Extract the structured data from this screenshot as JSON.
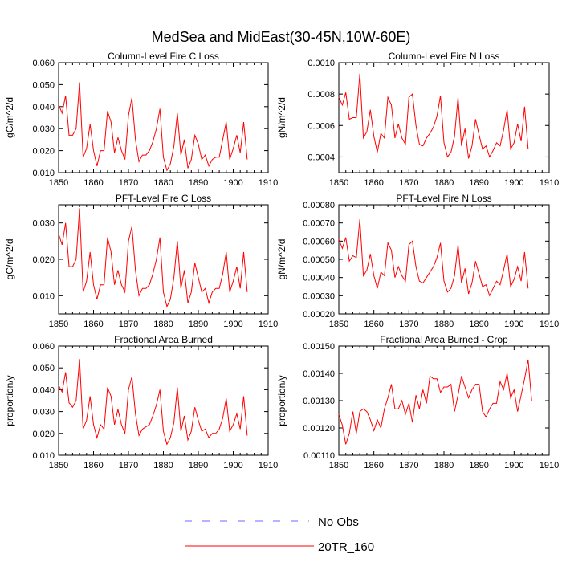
{
  "figure": {
    "title": "MedSea and MidEast(30-45N,10W-60E)",
    "line_color": "#ff0000",
    "obs_color": "#0000ff"
  },
  "legend": {
    "items": [
      {
        "label": "No Obs",
        "style": "dashed",
        "color": "#6a6aff"
      },
      {
        "label": "20TR_160",
        "style": "solid",
        "color": "#ff0000"
      }
    ]
  },
  "chart_data": [
    {
      "type": "line",
      "title": "Column-Level Fire C Loss",
      "ylabel": "gC/m^2/d",
      "xlim": [
        1850,
        1910
      ],
      "ylim": [
        0.01,
        0.06
      ],
      "xticks": [
        1850,
        1860,
        1870,
        1880,
        1890,
        1900,
        1910
      ],
      "yticks": [
        0.01,
        0.02,
        0.03,
        0.04,
        0.05,
        0.06
      ],
      "ytick_labels": [
        "0.010",
        "0.020",
        "0.030",
        "0.040",
        "0.050",
        "0.060"
      ],
      "x_start": 1850,
      "series": [
        {
          "name": "20TR_160",
          "values": [
            0.041,
            0.037,
            0.045,
            0.027,
            0.027,
            0.03,
            0.051,
            0.017,
            0.021,
            0.032,
            0.02,
            0.013,
            0.02,
            0.02,
            0.038,
            0.033,
            0.019,
            0.026,
            0.02,
            0.016,
            0.036,
            0.044,
            0.025,
            0.015,
            0.018,
            0.018,
            0.02,
            0.024,
            0.03,
            0.039,
            0.017,
            0.011,
            0.014,
            0.022,
            0.037,
            0.018,
            0.025,
            0.012,
            0.016,
            0.027,
            0.023,
            0.016,
            0.018,
            0.013,
            0.016,
            0.017,
            0.017,
            0.025,
            0.033,
            0.016,
            0.021,
            0.027,
            0.019,
            0.033,
            0.016
          ]
        }
      ]
    },
    {
      "type": "line",
      "title": "Column-Level Fire N Loss",
      "ylabel": "gN/m^2/d",
      "xlim": [
        1850,
        1910
      ],
      "ylim": [
        0.0003,
        0.001
      ],
      "xticks": [
        1850,
        1860,
        1870,
        1880,
        1890,
        1900,
        1910
      ],
      "yticks": [
        0.0004,
        0.0006,
        0.0008,
        0.001
      ],
      "ytick_labels": [
        "0.0004",
        "0.0006",
        "0.0008",
        "0.0010"
      ],
      "x_start": 1850,
      "series": [
        {
          "name": "20TR_160",
          "values": [
            0.00078,
            0.00073,
            0.00081,
            0.00064,
            0.00065,
            0.00065,
            0.00093,
            0.00052,
            0.00056,
            0.0007,
            0.00053,
            0.00043,
            0.00055,
            0.00052,
            0.00078,
            0.00073,
            0.00052,
            0.00061,
            0.00052,
            0.00048,
            0.00078,
            0.0008,
            0.0006,
            0.00048,
            0.00047,
            0.00052,
            0.00055,
            0.00059,
            0.00066,
            0.00079,
            0.00049,
            0.0004,
            0.00043,
            0.00053,
            0.00078,
            0.00047,
            0.00058,
            0.00039,
            0.00047,
            0.00064,
            0.00054,
            0.00045,
            0.00047,
            0.0004,
            0.00044,
            0.00049,
            0.00047,
            0.00057,
            0.0007,
            0.00045,
            0.00049,
            0.00061,
            0.0005,
            0.00072,
            0.00045
          ]
        }
      ]
    },
    {
      "type": "line",
      "title": "PFT-Level Fire C Loss",
      "ylabel": "gC/m^2/d",
      "xlim": [
        1850,
        1910
      ],
      "ylim": [
        0.005,
        0.035
      ],
      "xticks": [
        1850,
        1860,
        1870,
        1880,
        1890,
        1900,
        1910
      ],
      "yticks": [
        0.01,
        0.02,
        0.03
      ],
      "ytick_labels": [
        "0.010",
        "0.020",
        "0.030"
      ],
      "x_start": 1850,
      "series": [
        {
          "name": "20TR_160",
          "values": [
            0.027,
            0.024,
            0.03,
            0.018,
            0.018,
            0.02,
            0.034,
            0.011,
            0.014,
            0.022,
            0.013,
            0.009,
            0.013,
            0.013,
            0.026,
            0.022,
            0.013,
            0.017,
            0.013,
            0.011,
            0.025,
            0.029,
            0.017,
            0.01,
            0.012,
            0.012,
            0.013,
            0.016,
            0.02,
            0.026,
            0.011,
            0.007,
            0.009,
            0.015,
            0.025,
            0.012,
            0.017,
            0.008,
            0.011,
            0.019,
            0.015,
            0.011,
            0.012,
            0.008,
            0.011,
            0.012,
            0.012,
            0.016,
            0.022,
            0.011,
            0.014,
            0.018,
            0.012,
            0.022,
            0.011
          ]
        }
      ]
    },
    {
      "type": "line",
      "title": "PFT-Level Fire N Loss",
      "ylabel": "gN/m^2/d",
      "xlim": [
        1850,
        1910
      ],
      "ylim": [
        0.0002,
        0.0008
      ],
      "xticks": [
        1850,
        1860,
        1870,
        1880,
        1890,
        1900,
        1910
      ],
      "yticks": [
        0.0002,
        0.0003,
        0.0004,
        0.0005,
        0.0006,
        0.0007,
        0.0008
      ],
      "ytick_labels": [
        "0.00020",
        "0.00030",
        "0.00040",
        "0.00050",
        "0.00060",
        "0.00070",
        "0.00080"
      ],
      "x_start": 1850,
      "series": [
        {
          "name": "20TR_160",
          "values": [
            0.00061,
            0.00056,
            0.00062,
            0.00049,
            0.00052,
            0.00051,
            0.00072,
            0.00041,
            0.00044,
            0.00053,
            0.00041,
            0.00034,
            0.00043,
            0.00041,
            0.00059,
            0.00055,
            0.0004,
            0.00046,
            0.00041,
            0.00038,
            0.00058,
            0.0006,
            0.00046,
            0.00038,
            0.00037,
            0.0004,
            0.00043,
            0.00046,
            0.00051,
            0.00059,
            0.00038,
            0.00032,
            0.00034,
            0.00041,
            0.00058,
            0.00037,
            0.00045,
            0.00031,
            0.00037,
            0.00049,
            0.00042,
            0.00035,
            0.00036,
            0.0003,
            0.00034,
            0.00038,
            0.00036,
            0.00044,
            0.00053,
            0.00035,
            0.00039,
            0.00046,
            0.00038,
            0.00054,
            0.00034
          ]
        }
      ]
    },
    {
      "type": "line",
      "title": "Fractional Area Burned",
      "ylabel": "proportion/y",
      "xlim": [
        1850,
        1910
      ],
      "ylim": [
        0.01,
        0.06
      ],
      "xticks": [
        1850,
        1860,
        1870,
        1880,
        1890,
        1900,
        1910
      ],
      "yticks": [
        0.01,
        0.02,
        0.03,
        0.04,
        0.05,
        0.06
      ],
      "ytick_labels": [
        "0.010",
        "0.020",
        "0.030",
        "0.040",
        "0.050",
        "0.060"
      ],
      "x_start": 1850,
      "series": [
        {
          "name": "20TR_160",
          "values": [
            0.042,
            0.039,
            0.048,
            0.034,
            0.032,
            0.035,
            0.054,
            0.022,
            0.026,
            0.037,
            0.024,
            0.018,
            0.024,
            0.022,
            0.041,
            0.037,
            0.024,
            0.031,
            0.024,
            0.02,
            0.04,
            0.046,
            0.029,
            0.019,
            0.022,
            0.023,
            0.024,
            0.028,
            0.033,
            0.04,
            0.021,
            0.015,
            0.018,
            0.025,
            0.041,
            0.021,
            0.028,
            0.017,
            0.021,
            0.032,
            0.026,
            0.021,
            0.022,
            0.018,
            0.02,
            0.02,
            0.022,
            0.027,
            0.036,
            0.021,
            0.024,
            0.029,
            0.022,
            0.037,
            0.019
          ]
        }
      ]
    },
    {
      "type": "line",
      "title": "Fractional Area Burned - Crop",
      "ylabel": "proportion/y",
      "xlim": [
        1850,
        1910
      ],
      "ylim": [
        0.0011,
        0.0015
      ],
      "xticks": [
        1850,
        1860,
        1870,
        1880,
        1890,
        1900,
        1910
      ],
      "yticks": [
        0.0011,
        0.0012,
        0.0013,
        0.0014,
        0.0015
      ],
      "ytick_labels": [
        "0.00110",
        "0.00120",
        "0.00130",
        "0.00140",
        "0.00150"
      ],
      "x_start": 1850,
      "series": [
        {
          "name": "20TR_160",
          "values": [
            0.00125,
            0.00121,
            0.00114,
            0.00118,
            0.00126,
            0.00118,
            0.00126,
            0.00127,
            0.00126,
            0.00123,
            0.00119,
            0.00123,
            0.0012,
            0.00127,
            0.00131,
            0.00136,
            0.00127,
            0.00127,
            0.0013,
            0.00125,
            0.00129,
            0.00122,
            0.00132,
            0.00127,
            0.00134,
            0.00129,
            0.00139,
            0.00138,
            0.00138,
            0.00133,
            0.00135,
            0.00135,
            0.00136,
            0.00126,
            0.00132,
            0.00139,
            0.00135,
            0.00131,
            0.00134,
            0.00136,
            0.00136,
            0.00126,
            0.00124,
            0.00127,
            0.00129,
            0.00129,
            0.00137,
            0.00134,
            0.0014,
            0.00131,
            0.00134,
            0.00126,
            0.00132,
            0.00138,
            0.00145,
            0.0013
          ]
        }
      ]
    }
  ]
}
